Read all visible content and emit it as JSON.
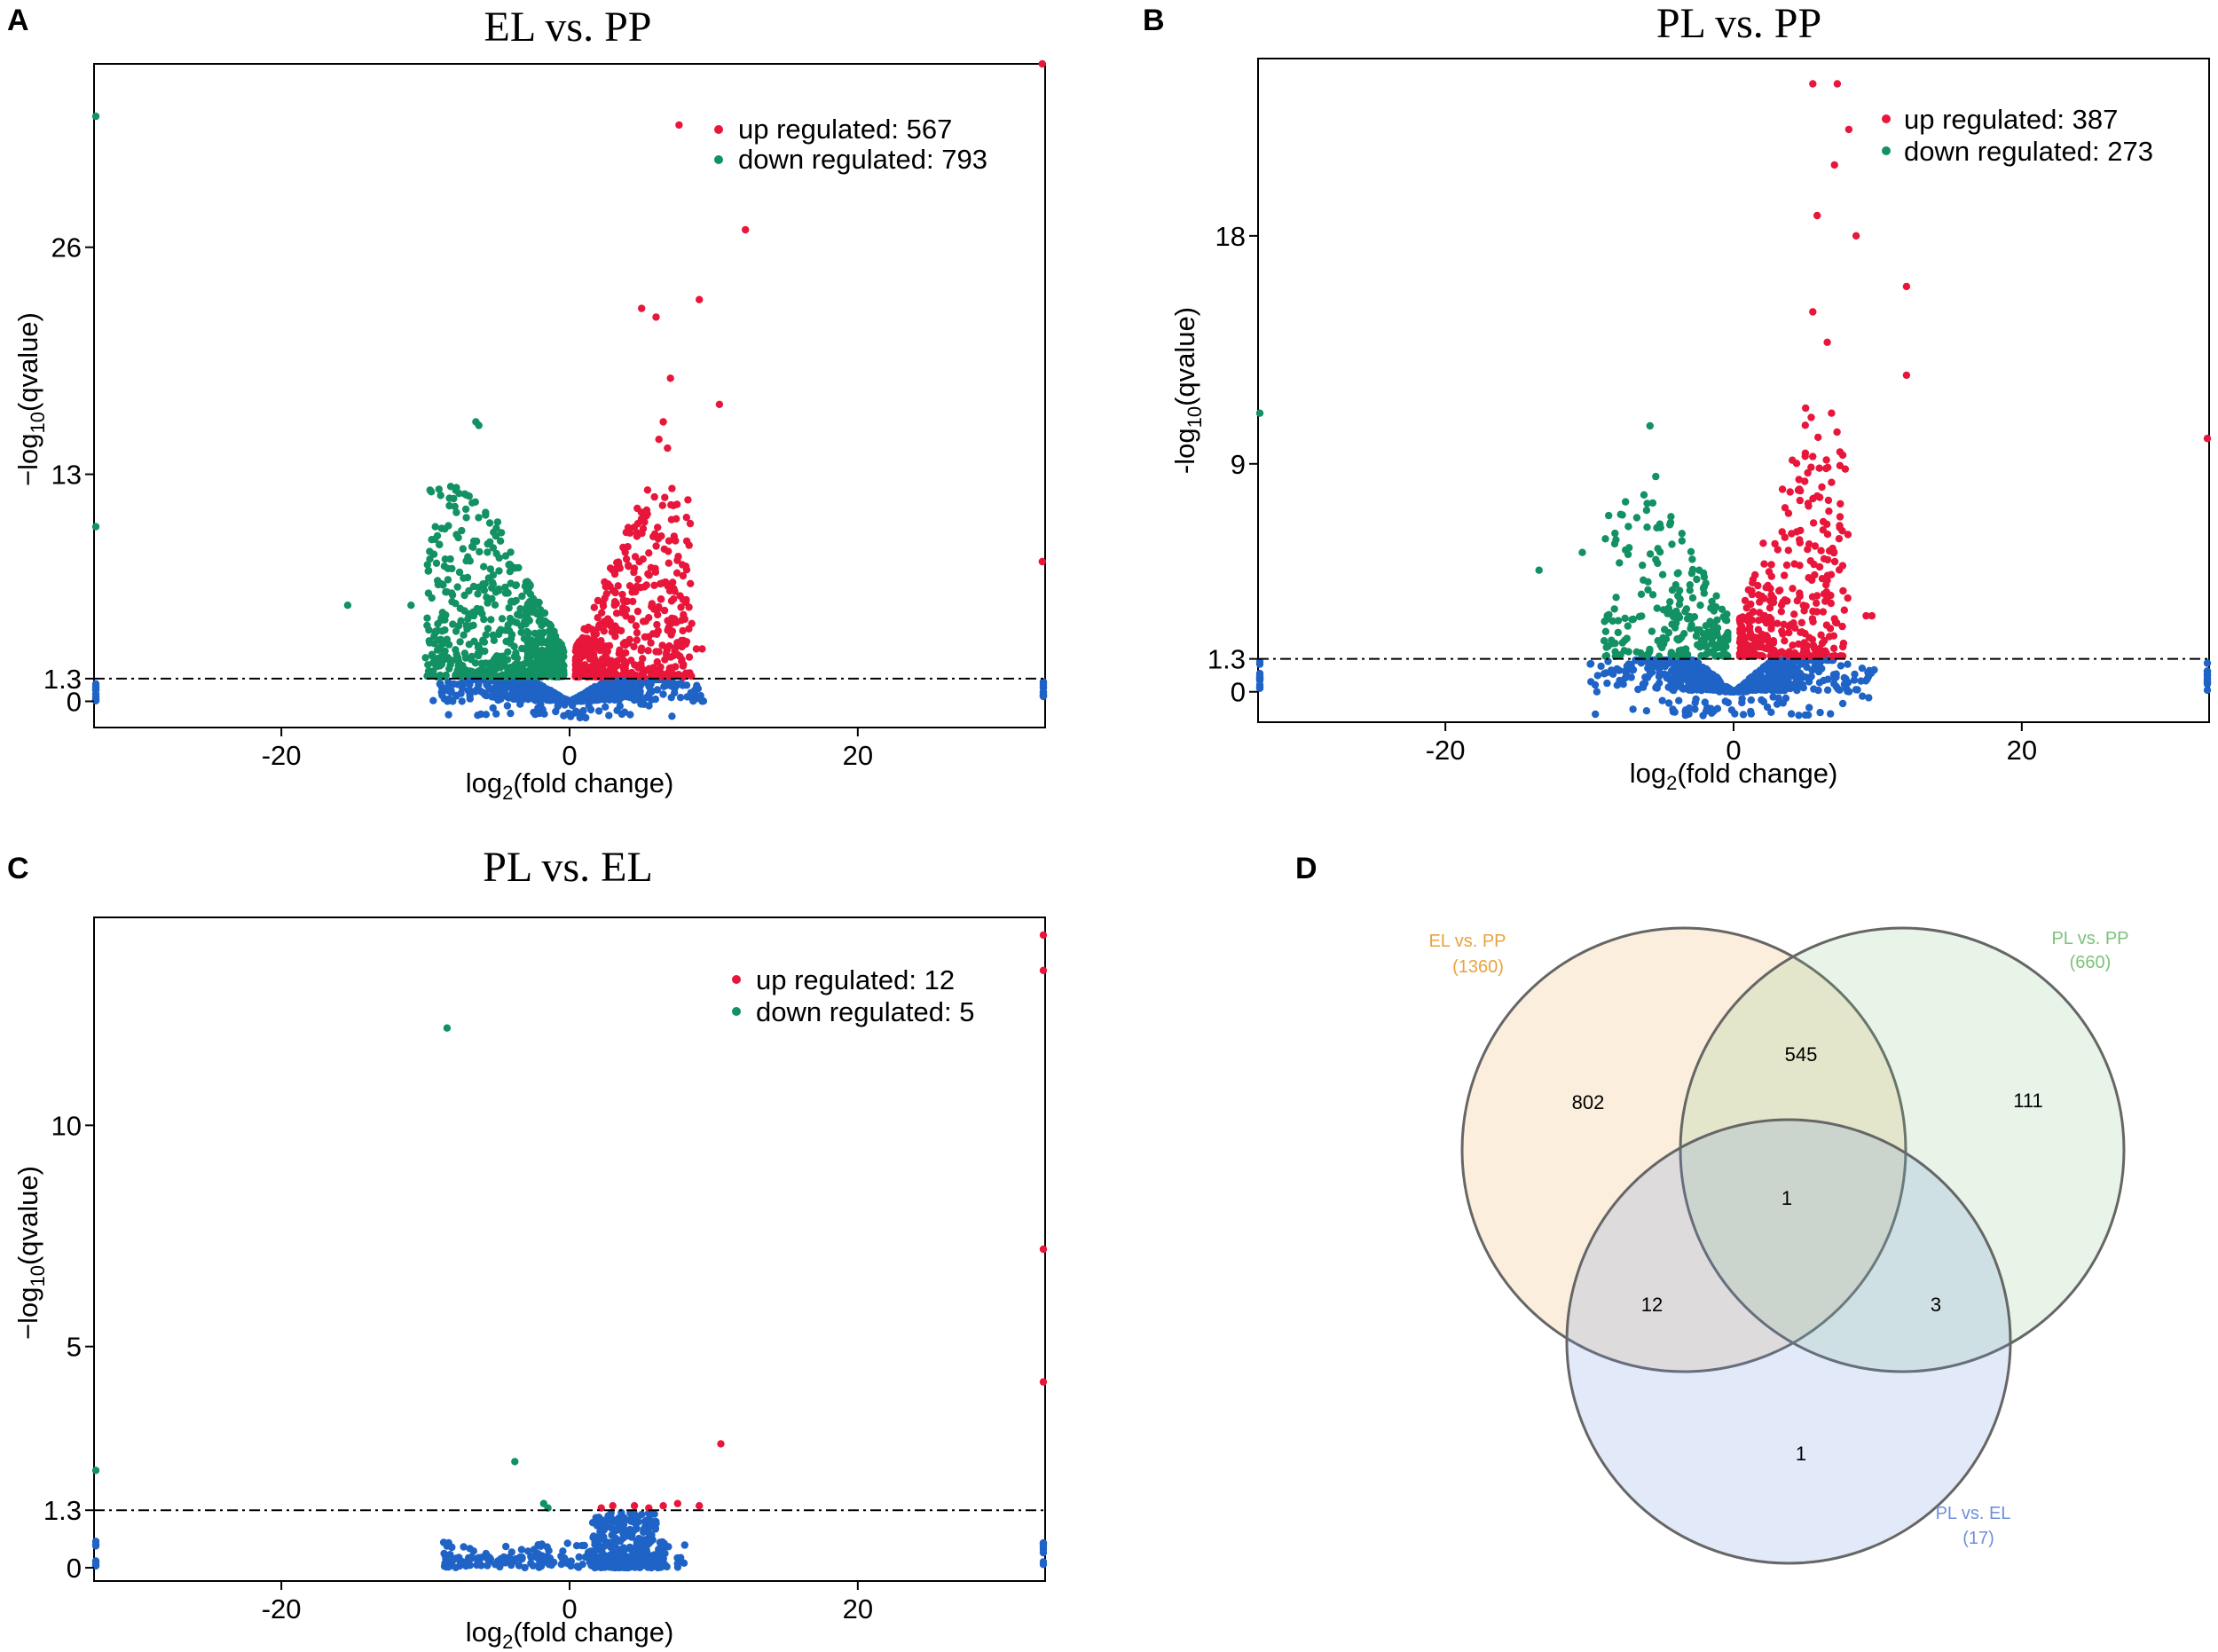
{
  "panels": {
    "A": {
      "label": "A"
    },
    "B": {
      "label": "B"
    },
    "C": {
      "label": "C"
    },
    "D": {
      "label": "D"
    }
  },
  "colors": {
    "up": "#e8163b",
    "down": "#129163",
    "ns": "#1f63c6",
    "venn_a": "#e8a33d",
    "venn_b": "#7cc27a",
    "venn_c": "#6e8fdb"
  },
  "chart_data": [
    {
      "type": "scatter",
      "panel": "A",
      "title": "EL vs. PP",
      "xlabel_main": "log",
      "xlabel_sub": "2",
      "xlabel_rest": "(fold change)",
      "ylabel_pre": "−log",
      "ylabel_sub": "10",
      "ylabel_rest": "(qvalue)",
      "xlim": [
        -33,
        33
      ],
      "ylim": [
        -1.5,
        36.5
      ],
      "xticks": [
        -20,
        0,
        20
      ],
      "xtick_labels": [
        "-20",
        "0",
        "20"
      ],
      "yticks": [
        0,
        1.3,
        13,
        26
      ],
      "ytick_labels": [
        "0",
        "1.3",
        "13",
        "26"
      ],
      "threshold": 1.3,
      "legend": [
        {
          "label": "up regulated: 567",
          "class": "up"
        },
        {
          "label": "down regulated: 793",
          "class": "down"
        }
      ],
      "up_count": 567,
      "down_count": 793,
      "up_points": [
        [
          7.6,
          33
        ],
        [
          12.2,
          27
        ],
        [
          5,
          22.5
        ],
        [
          9,
          23
        ],
        [
          10.4,
          17
        ],
        [
          6,
          22
        ],
        [
          6.5,
          16
        ],
        [
          7,
          18.5
        ],
        [
          6.2,
          15
        ],
        [
          6.8,
          14.5
        ],
        [
          8.8,
          3
        ],
        [
          9.2,
          3
        ],
        [
          32.8,
          36.5
        ],
        [
          32.8,
          8
        ]
      ],
      "down_points": [
        [
          -6.5,
          16
        ],
        [
          -6.3,
          15.8
        ],
        [
          -15.4,
          5.5
        ],
        [
          -11,
          5.5
        ],
        [
          -10,
          2.5
        ],
        [
          -9.6,
          12
        ],
        [
          -7.2,
          11
        ],
        [
          -33,
          33.5
        ],
        [
          -33,
          10
        ]
      ],
      "cloud": {
        "up": {
          "xmin": 0.4,
          "xmax": 8.5,
          "ymax": 11,
          "n": 480
        },
        "down": {
          "xmin": -10,
          "xmax": -0.4,
          "ymax": 11,
          "n": 640
        },
        "ns_half": 9.5
      }
    },
    {
      "type": "scatter",
      "panel": "B",
      "title": "PL vs. PP",
      "xlabel_main": "log",
      "xlabel_sub": "2",
      "xlabel_rest": "(fold change)",
      "ylabel_pre": "-log",
      "ylabel_sub": "10",
      "ylabel_rest": "(qvalue)",
      "xlim": [
        -33,
        33
      ],
      "ylim": [
        -1.2,
        25
      ],
      "xticks": [
        -20,
        0,
        20
      ],
      "xtick_labels": [
        "-20",
        "0",
        "20"
      ],
      "yticks": [
        0,
        1.3,
        9,
        18
      ],
      "ytick_labels": [
        "0",
        "1.3",
        "9",
        "18"
      ],
      "threshold": 1.3,
      "legend": [
        {
          "label": "up regulated: 387",
          "class": "up"
        },
        {
          "label": "down regulated: 273",
          "class": "down"
        }
      ],
      "up_count": 387,
      "down_count": 273,
      "up_points": [
        [
          5.5,
          24
        ],
        [
          7.2,
          24
        ],
        [
          8,
          22.2
        ],
        [
          7,
          20.8
        ],
        [
          5.8,
          18.8
        ],
        [
          8.5,
          18
        ],
        [
          12,
          16
        ],
        [
          5.5,
          15
        ],
        [
          6.5,
          13.8
        ],
        [
          12,
          12.5
        ],
        [
          5,
          11.2
        ],
        [
          6.8,
          11
        ],
        [
          9.2,
          3
        ],
        [
          9.6,
          3
        ],
        [
          33,
          10
        ]
      ],
      "down_points": [
        [
          -5.8,
          10.5
        ],
        [
          -13.5,
          4.8
        ],
        [
          -10.5,
          5.5
        ],
        [
          -5.4,
          8.5
        ],
        [
          -7.5,
          7.5
        ],
        [
          -6,
          6.5
        ],
        [
          -33,
          11
        ]
      ],
      "cloud": {
        "up": {
          "xmin": 0.4,
          "xmax": 8,
          "ymax": 9.5,
          "n": 340
        },
        "down": {
          "xmin": -9,
          "xmax": -0.4,
          "ymax": 6.5,
          "n": 230
        },
        "ns_half": 10
      }
    },
    {
      "type": "scatter",
      "panel": "C",
      "title": "PL vs. EL",
      "xlabel_main": "log",
      "xlabel_sub": "2",
      "xlabel_rest": "(fold change)",
      "ylabel_pre": "−log",
      "ylabel_sub": "10",
      "ylabel_rest": "(qvalue)",
      "xlim": [
        -33,
        33
      ],
      "ylim": [
        -0.3,
        14.7
      ],
      "xticks": [
        -20,
        0,
        20
      ],
      "xtick_labels": [
        "-20",
        "0",
        "20"
      ],
      "yticks": [
        0,
        1.3,
        5,
        10
      ],
      "ytick_labels": [
        "0",
        "1.3",
        "5",
        "10"
      ],
      "threshold": 1.3,
      "legend": [
        {
          "label": "up regulated: 12",
          "class": "up"
        },
        {
          "label": "down regulated: 5",
          "class": "down"
        }
      ],
      "up_count": 12,
      "down_count": 5,
      "up_points": [
        [
          10.5,
          2.8
        ],
        [
          3,
          1.4
        ],
        [
          4.5,
          1.4
        ],
        [
          6.5,
          1.4
        ],
        [
          9,
          1.4
        ],
        [
          5.5,
          1.35
        ],
        [
          2.2,
          1.35
        ],
        [
          7.5,
          1.45
        ],
        [
          33,
          14.3
        ],
        [
          33,
          13.5
        ],
        [
          33,
          7.2
        ],
        [
          33,
          4.2
        ]
      ],
      "down_points": [
        [
          -8.5,
          12.2
        ],
        [
          -3.8,
          2.4
        ],
        [
          -1.8,
          1.45
        ],
        [
          -33,
          2.2
        ],
        [
          -1.5,
          1.35
        ]
      ],
      "cloud": {
        "ns_region": [
          [
            -10,
            10
          ]
        ],
        "ns_max": 1.25,
        "ns_n": 650
      }
    }
  ],
  "venn": {
    "sets": [
      {
        "name": "EL vs. PP",
        "count": "(1360)"
      },
      {
        "name": "PL vs. PP",
        "count": "(660)"
      },
      {
        "name": "PL vs. EL",
        "count": "(17)"
      }
    ],
    "regions": {
      "a_only": "802",
      "ab": "545",
      "b_only": "111",
      "abc": "1",
      "ac": "12",
      "bc": "3",
      "c_only": "1"
    }
  }
}
